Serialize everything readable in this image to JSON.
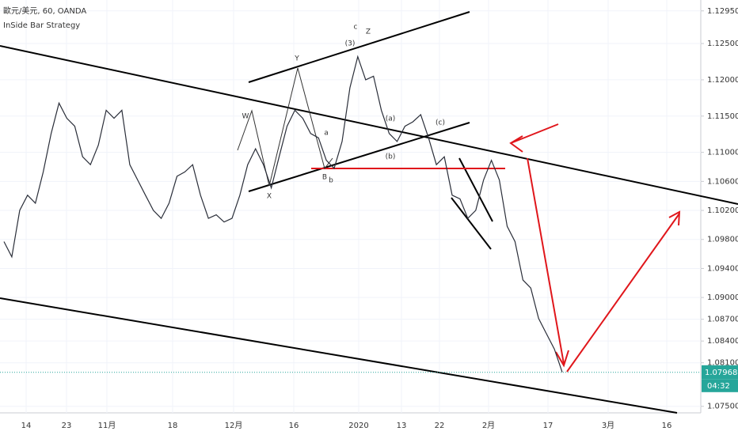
{
  "header": {
    "symbol": "歐元/美元, 60, OANDA",
    "indicator": "InSide Bar Strategy"
  },
  "chart_data": {
    "type": "line",
    "color": "#2a2e39",
    "grid": true,
    "values": [
      1.0977,
      1.0956,
      1.102,
      1.1041,
      1.103,
      1.1073,
      1.1126,
      1.1168,
      1.1147,
      1.1136,
      1.1094,
      1.1083,
      1.111,
      1.1158,
      1.1147,
      1.1158,
      1.1083,
      1.1062,
      1.1041,
      1.102,
      1.1009,
      1.103,
      1.1067,
      1.1073,
      1.1083,
      1.1041,
      1.1009,
      1.1014,
      1.1004,
      1.1009,
      1.1041,
      1.1083,
      1.1105,
      1.1083,
      1.1051,
      1.1094,
      1.1136,
      1.1158,
      1.1147,
      1.1126,
      1.112,
      1.1089,
      1.1078,
      1.1115,
      1.1189,
      1.1232,
      1.12,
      1.1205,
      1.1158,
      1.1126,
      1.1115,
      1.1136,
      1.1142,
      1.1152,
      1.112,
      1.1083,
      1.1094,
      1.1041,
      1.1036,
      1.1009,
      1.102,
      1.1062,
      1.1089,
      1.1062,
      1.0998,
      1.0977,
      1.0924,
      1.0913,
      1.0871,
      1.085,
      1.0829,
      1.0797
    ],
    "ylim": [
      1.0741,
      1.131
    ],
    "yticks": [
      {
        "value": 1.075,
        "label": "1.07500"
      },
      {
        "value": 1.081,
        "label": "1.08100"
      },
      {
        "value": 1.084,
        "label": "1.08400"
      },
      {
        "value": 1.087,
        "label": "1.08700"
      },
      {
        "value": 1.09,
        "label": "1.09000"
      },
      {
        "value": 1.094,
        "label": "1.09400"
      },
      {
        "value": 1.098,
        "label": "1.09800"
      },
      {
        "value": 1.102,
        "label": "1.10200"
      },
      {
        "value": 1.106,
        "label": "1.10600"
      },
      {
        "value": 1.11,
        "label": "1.11000"
      },
      {
        "value": 1.115,
        "label": "1.11500"
      },
      {
        "value": 1.12,
        "label": "1.12000"
      },
      {
        "value": 1.125,
        "label": "1.12500"
      },
      {
        "value": 1.1295,
        "label": "1.12950"
      }
    ],
    "x_tick_labels": [
      "14",
      "23",
      "11月",
      "18",
      "12月",
      "16",
      "2020",
      "13",
      "22",
      "2月",
      "17",
      "3月",
      "16"
    ],
    "last_price": {
      "value": 1.07968,
      "label": "1.07968"
    },
    "countdown": "04:32",
    "annotations": [
      "W",
      "X",
      "Y",
      "Z",
      "a",
      "B",
      "b",
      "(3)",
      "c",
      "(a)",
      "(b)",
      "(c)"
    ]
  }
}
